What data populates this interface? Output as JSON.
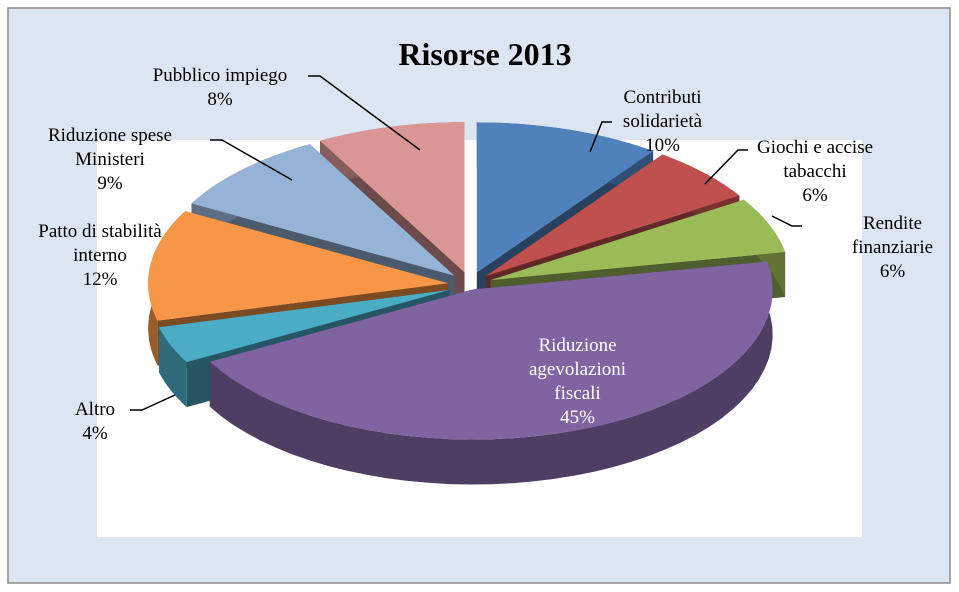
{
  "chart_data": {
    "type": "pie",
    "title": "Risorse 2013",
    "categories": [
      "Contributi solidarietà",
      "Giochi e accise tabacchi",
      "Rendite finanziarie",
      "Riduzione agevolazioni fiscali",
      "Altro",
      "Patto di stabilità interno",
      "Riduzione spese Ministeri",
      "Pubblico impiego"
    ],
    "values": [
      10,
      6,
      6,
      45,
      4,
      12,
      9,
      8
    ],
    "value_labels": [
      "10%",
      "6%",
      "6%",
      "45%",
      "4%",
      "12%",
      "9%",
      "8%"
    ],
    "colors": [
      "#4f81bd",
      "#c0504d",
      "#9bbb59",
      "#8064a2",
      "#4bacc6",
      "#f79646",
      "#95b3d7",
      "#d99694"
    ]
  }
}
